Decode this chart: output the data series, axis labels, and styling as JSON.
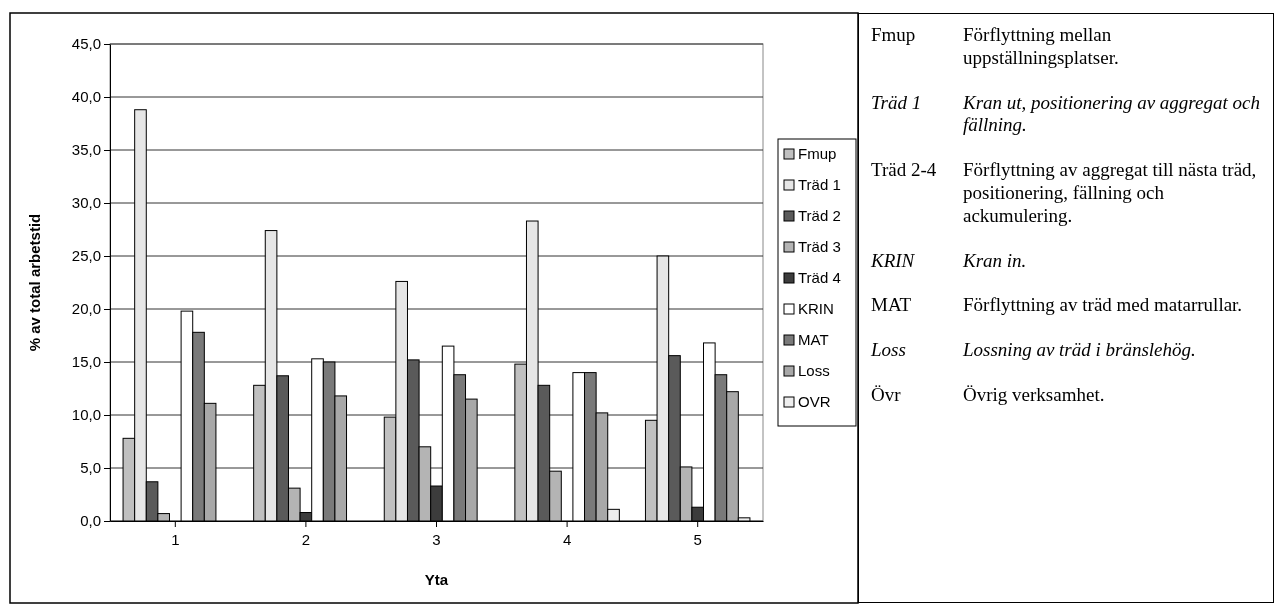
{
  "chart_data": {
    "type": "bar",
    "xlabel": "Yta",
    "ylabel": "% av total arbetstid",
    "categories": [
      "1",
      "2",
      "3",
      "4",
      "5"
    ],
    "series": [
      {
        "name": "Fmup",
        "color": "#c0c0c0",
        "values": [
          7.8,
          12.8,
          9.8,
          14.8,
          9.5
        ]
      },
      {
        "name": "Träd 1",
        "color": "#e6e6e6",
        "values": [
          38.8,
          27.4,
          22.6,
          28.3,
          25.0
        ]
      },
      {
        "name": "Träd 2",
        "color": "#5a5a5a",
        "values": [
          3.7,
          13.7,
          15.2,
          12.8,
          15.6
        ]
      },
      {
        "name": "Träd 3",
        "color": "#b4b4b4",
        "values": [
          0.7,
          3.1,
          7.0,
          4.7,
          5.1
        ]
      },
      {
        "name": "Träd 4",
        "color": "#3c3c3c",
        "values": [
          0,
          0.8,
          3.3,
          0,
          1.3
        ]
      },
      {
        "name": "KRIN",
        "color": "#ffffff",
        "values": [
          19.8,
          15.3,
          16.5,
          14.0,
          16.8
        ]
      },
      {
        "name": "MAT",
        "color": "#7a7a7a",
        "values": [
          17.8,
          15.0,
          13.8,
          14.0,
          13.8
        ]
      },
      {
        "name": "Loss",
        "color": "#a8a8a8",
        "values": [
          11.1,
          11.8,
          11.5,
          10.2,
          12.2
        ]
      },
      {
        "name": "OVR",
        "color": "#eeeeee",
        "values": [
          0,
          0,
          0,
          1.1,
          0.3
        ]
      }
    ],
    "ylim": [
      0,
      45
    ],
    "yticks": [
      {
        "value": 0,
        "label": "0,0"
      },
      {
        "value": 5,
        "label": "5,0"
      },
      {
        "value": 10,
        "label": "10,0"
      },
      {
        "value": 15,
        "label": "15,0"
      },
      {
        "value": 20,
        "label": "20,0"
      },
      {
        "value": 25,
        "label": "25,0"
      },
      {
        "value": 30,
        "label": "30,0"
      },
      {
        "value": 35,
        "label": "35,0"
      },
      {
        "value": 40,
        "label": "40,0"
      },
      {
        "value": 45,
        "label": "45,0"
      }
    ],
    "grid": "y",
    "legend": "right",
    "annotations": [
      "Fmup\tFörflyttning mellan uppställningsplatser.",
      "Träd 1\tKran ut, positionering av aggregat och fällning.",
      "Träd 2-4\tFörflyttning av aggregat till nästa träd, positionering, fällning och ackumulering.",
      "KRIN\tKran in.",
      "MAT\tFörflyttning av träd med matarrullar.",
      "Loss\tLossning av träd i bränslehög.",
      "Övr\tÖvrig verksamhet."
    ]
  }
}
